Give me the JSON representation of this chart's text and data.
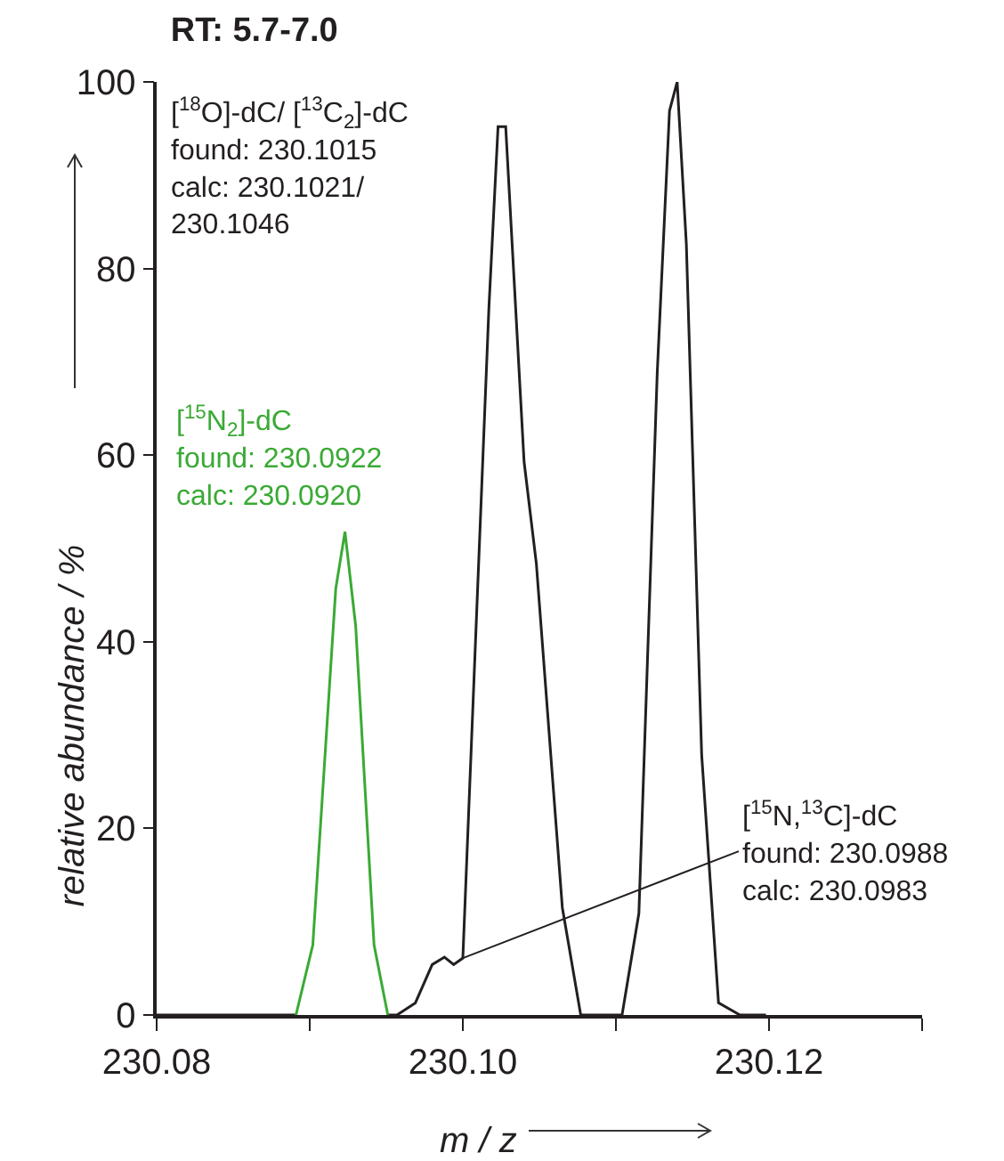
{
  "chart_data": {
    "type": "line",
    "title": "RT: 5.7-7.0",
    "xlabel": "m / z",
    "ylabel": "relative abundance / %",
    "xlim": [
      230.08,
      230.13
    ],
    "xticks": [
      230.08,
      {
        "value": 230.09,
        "label": null
      },
      {
        "value": 230.1,
        "label": "230.10"
      },
      {
        "value": 230.11,
        "label": null
      },
      230.12,
      {
        "value": 230.13,
        "label": null
      }
    ],
    "ylim": [
      0,
      100
    ],
    "yticks": [
      0,
      20,
      40,
      60,
      80,
      100
    ],
    "grid": false,
    "legend": false,
    "marker": "none",
    "line_style": "solid",
    "series": [
      {
        "name": "[$^{18}$O]-dC/ [$^{13}$C$_{2}$]-dC\nfound: 230.1015\ncalc: 230.1021/\n230.1046",
        "color": "#231f20",
        "x": [
          230.08,
          230.0891,
          null,
          230.0951,
          230.0957,
          230.0969,
          230.098,
          230.0988,
          230.0994,
          230.1,
          230.1007,
          230.1017,
          230.1023,
          230.1028,
          230.104,
          230.1048,
          230.1059,
          230.1065,
          230.1077,
          230.1104,
          230.1115,
          230.1127,
          230.1135,
          230.114,
          230.1146,
          230.1156,
          230.1167,
          230.1181,
          230.1198
        ],
        "values": [
          0,
          0,
          null,
          0,
          0,
          1.3,
          5.4,
          6.2,
          5.4,
          6.1,
          34.8,
          75.7,
          95.2,
          95.2,
          59.3,
          48.4,
          24.5,
          11.5,
          0,
          0,
          10.9,
          68.9,
          96.9,
          100,
          82.6,
          27.9,
          1.3,
          0,
          0
        ]
      },
      {
        "name": "[$^{15}$N$_{2}$]-dC\nfound: 230.0922\ncalc: 230.0920",
        "color": "#3aaa35",
        "x": [
          230.0891,
          230.0902,
          230.0917,
          230.0923,
          230.093,
          230.0942,
          230.0951
        ],
        "values": [
          0,
          7.5,
          45.7,
          51.8,
          41.7,
          7.5,
          0
        ]
      }
    ],
    "annotations": [
      {
        "text": "[$^{15}$N,$^{13}$C]-dC\nfound: 230.0988\ncalc: 230.0983",
        "x": 230.1,
        "y": 6.1
      }
    ]
  }
}
